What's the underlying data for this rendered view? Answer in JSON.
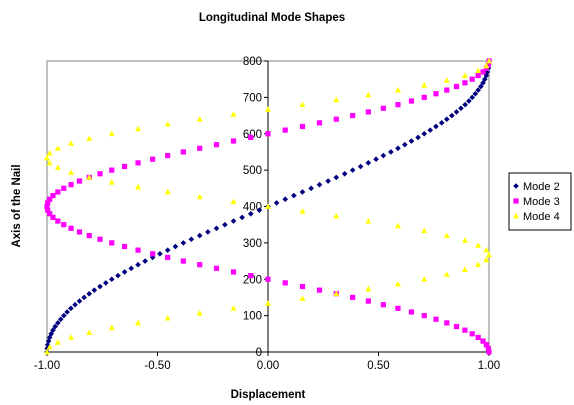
{
  "chart_data": {
    "type": "scatter",
    "title": "Longitudinal Mode Shapes",
    "xlabel": "Displacement",
    "ylabel": "Axis of the Nail",
    "xlim": [
      -1.0,
      1.0
    ],
    "ylim": [
      0,
      800
    ],
    "x_ticks": [
      "-1.00",
      "-0.50",
      "0.00",
      "0.50",
      "1.00"
    ],
    "y_ticks": [
      "0",
      "100",
      "200",
      "300",
      "400",
      "500",
      "600",
      "700",
      "800"
    ],
    "grid": false,
    "legend_position": "right",
    "series": [
      {
        "name": "Mode 2",
        "color": "#00007f",
        "marker": "diamond",
        "x": [
          -1.0,
          -0.999,
          -0.997,
          -0.993,
          -0.988,
          -0.981,
          -0.973,
          -0.963,
          -0.951,
          -0.938,
          -0.924,
          -0.909,
          -0.892,
          -0.873,
          -0.853,
          -0.832,
          -0.809,
          -0.786,
          -0.76,
          -0.734,
          -0.707,
          -0.679,
          -0.649,
          -0.619,
          -0.588,
          -0.556,
          -0.522,
          -0.489,
          -0.454,
          -0.419,
          -0.383,
          -0.347,
          -0.309,
          -0.272,
          -0.233,
          -0.195,
          -0.156,
          -0.117,
          -0.078,
          -0.039,
          0.0,
          0.039,
          0.078,
          0.117,
          0.156,
          0.195,
          0.233,
          0.272,
          0.309,
          0.347,
          0.383,
          0.419,
          0.454,
          0.489,
          0.522,
          0.556,
          0.588,
          0.619,
          0.649,
          0.679,
          0.707,
          0.734,
          0.76,
          0.786,
          0.809,
          0.832,
          0.853,
          0.873,
          0.892,
          0.909,
          0.924,
          0.938,
          0.951,
          0.963,
          0.973,
          0.981,
          0.988,
          0.993,
          0.997,
          0.999,
          1.0
        ],
        "y": [
          0,
          10,
          20,
          30,
          40,
          50,
          60,
          70,
          80,
          90,
          100,
          110,
          120,
          130,
          140,
          150,
          160,
          170,
          180,
          190,
          200,
          210,
          220,
          230,
          240,
          250,
          260,
          270,
          280,
          290,
          300,
          310,
          320,
          330,
          340,
          350,
          360,
          370,
          380,
          390,
          400,
          410,
          420,
          430,
          440,
          450,
          460,
          470,
          480,
          490,
          500,
          510,
          520,
          530,
          540,
          550,
          560,
          570,
          580,
          590,
          600,
          610,
          620,
          630,
          640,
          650,
          660,
          670,
          680,
          690,
          700,
          710,
          720,
          730,
          740,
          750,
          760,
          770,
          780,
          790,
          800
        ]
      },
      {
        "name": "Mode 3",
        "color": "#ff00ff",
        "marker": "square",
        "x": [
          1.0,
          0.997,
          0.988,
          0.973,
          0.951,
          0.924,
          0.891,
          0.853,
          0.809,
          0.76,
          0.707,
          0.649,
          0.588,
          0.522,
          0.454,
          0.383,
          0.309,
          0.233,
          0.156,
          0.078,
          0.0,
          -0.078,
          -0.156,
          -0.233,
          -0.309,
          -0.383,
          -0.454,
          -0.522,
          -0.588,
          -0.649,
          -0.707,
          -0.76,
          -0.809,
          -0.853,
          -0.891,
          -0.924,
          -0.951,
          -0.973,
          -0.988,
          -0.997,
          -1.0,
          -0.997,
          -0.988,
          -0.973,
          -0.951,
          -0.924,
          -0.891,
          -0.853,
          -0.809,
          -0.76,
          -0.707,
          -0.649,
          -0.588,
          -0.522,
          -0.454,
          -0.383,
          -0.309,
          -0.233,
          -0.156,
          -0.078,
          0.0,
          0.078,
          0.156,
          0.233,
          0.309,
          0.383,
          0.454,
          0.522,
          0.588,
          0.649,
          0.707,
          0.76,
          0.809,
          0.853,
          0.891,
          0.924,
          0.951,
          0.973,
          0.988,
          0.997,
          1.0
        ],
        "y": [
          0,
          10,
          20,
          30,
          40,
          50,
          60,
          70,
          80,
          90,
          100,
          110,
          120,
          130,
          140,
          150,
          160,
          170,
          180,
          190,
          200,
          210,
          220,
          230,
          240,
          250,
          260,
          270,
          280,
          290,
          300,
          310,
          320,
          330,
          340,
          350,
          360,
          370,
          380,
          390,
          400,
          410,
          420,
          430,
          440,
          450,
          460,
          470,
          480,
          490,
          500,
          510,
          520,
          530,
          540,
          550,
          560,
          570,
          580,
          590,
          600,
          610,
          620,
          630,
          640,
          650,
          660,
          670,
          680,
          690,
          700,
          710,
          720,
          730,
          740,
          750,
          760,
          770,
          780,
          790,
          800
        ]
      },
      {
        "name": "Mode 4",
        "color": "#ffff00",
        "marker": "triangle",
        "x": [
          -1.0,
          -0.988,
          -0.951,
          -0.891,
          -0.809,
          -0.707,
          -0.588,
          -0.454,
          -0.309,
          -0.156,
          0.0,
          0.156,
          0.309,
          0.454,
          0.588,
          0.707,
          0.809,
          0.891,
          0.951,
          0.988,
          1.0,
          0.988,
          0.951,
          0.891,
          0.809,
          0.707,
          0.588,
          0.454,
          0.309,
          0.156,
          0.0,
          -0.156,
          -0.309,
          -0.454,
          -0.588,
          -0.707,
          -0.809,
          -0.891,
          -0.951,
          -0.988,
          -1.0,
          -0.988,
          -0.951,
          -0.891,
          -0.809,
          -0.707,
          -0.588,
          -0.454,
          -0.309,
          -0.156,
          0.0,
          0.156,
          0.309,
          0.454,
          0.588,
          0.707,
          0.809,
          0.891,
          0.951,
          0.988,
          1.0
        ],
        "y": [
          0,
          13.3,
          26.7,
          40,
          53.3,
          66.7,
          80,
          93.3,
          106.7,
          120,
          133.3,
          146.7,
          160,
          173.3,
          186.7,
          200,
          213.3,
          226.7,
          240,
          253.3,
          266.7,
          280,
          293.3,
          306.7,
          320,
          333.3,
          346.7,
          360,
          373.3,
          386.7,
          400,
          413.3,
          426.7,
          440,
          453.3,
          466.7,
          480,
          493.3,
          506.7,
          520,
          533.3,
          546.7,
          560,
          573.3,
          586.7,
          600,
          613.3,
          626.7,
          640,
          653.3,
          666.7,
          680,
          693.3,
          706.7,
          720,
          733.3,
          746.7,
          760,
          773.3,
          786.7,
          800
        ]
      }
    ]
  }
}
